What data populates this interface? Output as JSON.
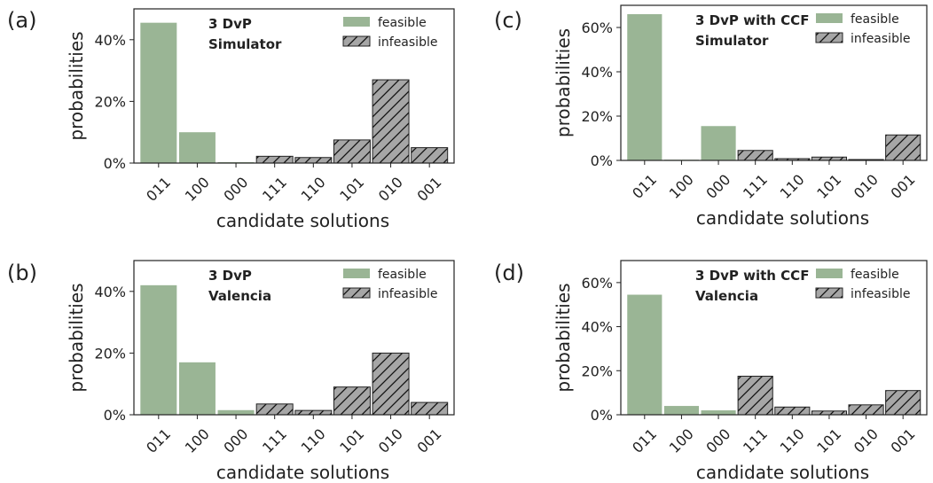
{
  "colors": {
    "feasible": "#9ab595",
    "infeasible": "#a6a6a6",
    "edge": "#222222",
    "hatch": "#111111"
  },
  "chart_data": [
    {
      "type": "bar",
      "panel_label": "(a)",
      "title_lines": [
        "3 DvP",
        "Simulator"
      ],
      "xlabel": "candidate solutions",
      "ylabel": "probabilities",
      "ylim": [
        0,
        0.5
      ],
      "yticks": [
        0,
        0.2,
        0.4
      ],
      "ytick_labels": [
        "0%",
        "20%",
        "40%"
      ],
      "categories": [
        "011",
        "100",
        "000",
        "111",
        "110",
        "101",
        "010",
        "001"
      ],
      "values": [
        0.455,
        0.1,
        0.003,
        0.022,
        0.018,
        0.075,
        0.27,
        0.05
      ],
      "feasible": [
        true,
        true,
        true,
        false,
        false,
        false,
        false,
        false
      ],
      "legend": [
        "feasible",
        "infeasible"
      ],
      "legend_position": "top-right",
      "grid": false
    },
    {
      "type": "bar",
      "panel_label": "(b)",
      "title_lines": [
        "3 DvP",
        "Valencia"
      ],
      "xlabel": "candidate solutions",
      "ylabel": "probabilities",
      "ylim": [
        0,
        0.5
      ],
      "yticks": [
        0,
        0.2,
        0.4
      ],
      "ytick_labels": [
        "0%",
        "20%",
        "40%"
      ],
      "categories": [
        "011",
        "100",
        "000",
        "111",
        "110",
        "101",
        "010",
        "001"
      ],
      "values": [
        0.42,
        0.17,
        0.015,
        0.035,
        0.014,
        0.09,
        0.2,
        0.04
      ],
      "feasible": [
        true,
        true,
        true,
        false,
        false,
        false,
        false,
        false
      ],
      "legend": [
        "feasible",
        "infeasible"
      ],
      "legend_position": "top-right",
      "grid": false
    },
    {
      "type": "bar",
      "panel_label": "(c)",
      "title_lines": [
        "3 DvP with CCF",
        "Simulator"
      ],
      "xlabel": "candidate solutions",
      "ylabel": "probabilities",
      "ylim": [
        0,
        0.7
      ],
      "yticks": [
        0,
        0.2,
        0.4,
        0.6
      ],
      "ytick_labels": [
        "0%",
        "20%",
        "40%",
        "60%"
      ],
      "categories": [
        "011",
        "100",
        "000",
        "111",
        "110",
        "101",
        "010",
        "001"
      ],
      "values": [
        0.66,
        0.002,
        0.155,
        0.045,
        0.008,
        0.015,
        0.004,
        0.115
      ],
      "feasible": [
        true,
        true,
        true,
        false,
        false,
        false,
        false,
        false
      ],
      "legend": [
        "feasible",
        "infeasible"
      ],
      "legend_position": "top-right",
      "grid": false
    },
    {
      "type": "bar",
      "panel_label": "(d)",
      "title_lines": [
        "3 DvP with CCF",
        "Valencia"
      ],
      "xlabel": "candidate solutions",
      "ylabel": "probabilities",
      "ylim": [
        0,
        0.7
      ],
      "yticks": [
        0,
        0.2,
        0.4,
        0.6
      ],
      "ytick_labels": [
        "0%",
        "20%",
        "40%",
        "60%"
      ],
      "categories": [
        "011",
        "100",
        "000",
        "111",
        "110",
        "101",
        "010",
        "001"
      ],
      "values": [
        0.545,
        0.04,
        0.02,
        0.175,
        0.035,
        0.017,
        0.045,
        0.11
      ],
      "feasible": [
        true,
        true,
        true,
        false,
        false,
        false,
        false,
        false
      ],
      "legend": [
        "feasible",
        "infeasible"
      ],
      "legend_position": "top-right",
      "grid": false
    }
  ]
}
